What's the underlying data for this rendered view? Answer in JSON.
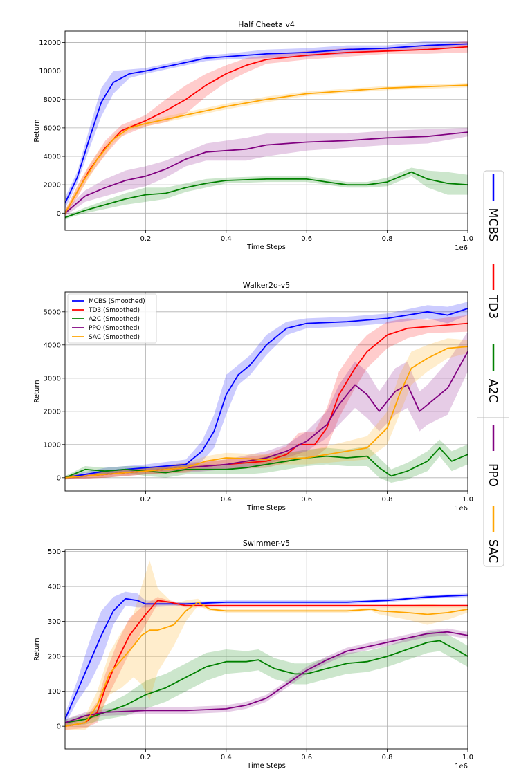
{
  "chart_data": [
    {
      "type": "line",
      "title": "Half Cheeta v4",
      "xlabel": "Time Steps",
      "ylabel": "Return",
      "x_offset_text": "1e6",
      "xlim": [
        0,
        1.0
      ],
      "ylim": [
        -1200,
        12800
      ],
      "xticks": [
        0.2,
        0.4,
        0.6,
        0.8,
        1.0
      ],
      "xtick_labels": [
        "0.2",
        "0.4",
        "0.6",
        "0.8",
        "1.0"
      ],
      "yticks": [
        0,
        2000,
        4000,
        6000,
        8000,
        10000,
        12000
      ],
      "ytick_labels": [
        "0",
        "2000",
        "4000",
        "6000",
        "8000",
        "10000",
        "12000"
      ],
      "grid": true,
      "series": [
        {
          "name": "MCBS",
          "color": "#0000ff",
          "x": [
            0,
            0.03,
            0.06,
            0.09,
            0.12,
            0.16,
            0.2,
            0.25,
            0.3,
            0.35,
            0.4,
            0.5,
            0.6,
            0.7,
            0.8,
            0.9,
            1.0
          ],
          "values": [
            700,
            2500,
            5200,
            7800,
            9200,
            9800,
            10000,
            10300,
            10600,
            10900,
            11000,
            11200,
            11300,
            11500,
            11600,
            11800,
            11900
          ],
          "band": [
            400,
            400,
            700,
            1000,
            800,
            300,
            200,
            200,
            200,
            200,
            200,
            300,
            300,
            300,
            200,
            300,
            200
          ]
        },
        {
          "name": "TD3",
          "color": "#ff0000",
          "x": [
            0,
            0.03,
            0.06,
            0.1,
            0.14,
            0.2,
            0.25,
            0.3,
            0.35,
            0.4,
            0.45,
            0.5,
            0.6,
            0.7,
            0.8,
            0.9,
            1.0
          ],
          "values": [
            0,
            1500,
            3000,
            4600,
            5800,
            6500,
            7200,
            8000,
            9000,
            9800,
            10400,
            10800,
            11100,
            11300,
            11400,
            11500,
            11700
          ],
          "band": [
            200,
            400,
            400,
            500,
            400,
            400,
            800,
            1000,
            800,
            600,
            500,
            300,
            300,
            300,
            200,
            300,
            400
          ]
        },
        {
          "name": "A2C",
          "color": "#008000",
          "x": [
            0,
            0.05,
            0.1,
            0.15,
            0.2,
            0.25,
            0.3,
            0.35,
            0.4,
            0.5,
            0.6,
            0.65,
            0.7,
            0.75,
            0.8,
            0.86,
            0.9,
            0.95,
            1.0
          ],
          "values": [
            -300,
            200,
            600,
            1000,
            1300,
            1400,
            1800,
            2100,
            2300,
            2400,
            2400,
            2200,
            2000,
            2000,
            2200,
            2900,
            2400,
            2100,
            2000
          ],
          "band": [
            100,
            200,
            300,
            400,
            500,
            400,
            300,
            300,
            200,
            200,
            200,
            200,
            200,
            200,
            300,
            300,
            600,
            800,
            700
          ]
        },
        {
          "name": "PPO",
          "color": "#800080",
          "x": [
            0,
            0.05,
            0.1,
            0.15,
            0.2,
            0.25,
            0.3,
            0.35,
            0.4,
            0.45,
            0.5,
            0.6,
            0.7,
            0.8,
            0.9,
            1.0
          ],
          "values": [
            0,
            1200,
            1800,
            2300,
            2600,
            3100,
            3800,
            4300,
            4400,
            4500,
            4800,
            5000,
            5100,
            5300,
            5400,
            5700
          ],
          "band": [
            200,
            400,
            600,
            700,
            700,
            600,
            500,
            600,
            700,
            800,
            800,
            600,
            500,
            500,
            500,
            300
          ]
        },
        {
          "name": "SAC",
          "color": "#ffa500",
          "x": [
            0,
            0.04,
            0.08,
            0.12,
            0.16,
            0.2,
            0.3,
            0.4,
            0.5,
            0.6,
            0.7,
            0.8,
            0.9,
            1.0
          ],
          "values": [
            0,
            2000,
            3800,
            5200,
            6000,
            6300,
            6900,
            7500,
            8000,
            8400,
            8600,
            8800,
            8900,
            9000
          ],
          "band": [
            200,
            400,
            400,
            300,
            200,
            200,
            200,
            200,
            200,
            150,
            150,
            150,
            150,
            150
          ]
        }
      ]
    },
    {
      "type": "line",
      "title": "Walker2d-v5",
      "xlabel": "Time Steps",
      "ylabel": "Return",
      "x_offset_text": "1e6",
      "xlim": [
        0,
        1.0
      ],
      "ylim": [
        -400,
        5600
      ],
      "xticks": [
        0.2,
        0.4,
        0.6,
        0.8,
        1.0
      ],
      "xtick_labels": [
        "0.2",
        "0.4",
        "0.6",
        "0.8",
        "1.0"
      ],
      "yticks": [
        0,
        1000,
        2000,
        3000,
        4000,
        5000
      ],
      "ytick_labels": [
        "0",
        "1000",
        "2000",
        "3000",
        "4000",
        "5000"
      ],
      "grid": true,
      "legend": {
        "placement": "top-left",
        "entries": [
          "MCBS (Smoothed)",
          "TD3 (Smoothed)",
          "A2C (Smoothed)",
          "PPO (Smoothed)",
          "SAC (Smoothed)"
        ]
      },
      "series": [
        {
          "name": "MCBS (Smoothed)",
          "color": "#0000ff",
          "x": [
            0,
            0.1,
            0.2,
            0.3,
            0.34,
            0.37,
            0.4,
            0.43,
            0.46,
            0.5,
            0.55,
            0.6,
            0.7,
            0.8,
            0.9,
            0.95,
            1.0
          ],
          "values": [
            0,
            200,
            300,
            400,
            800,
            1400,
            2500,
            3100,
            3400,
            4000,
            4500,
            4650,
            4700,
            4800,
            5000,
            4900,
            5100
          ],
          "band": [
            50,
            100,
            100,
            150,
            300,
            500,
            600,
            300,
            300,
            300,
            200,
            150,
            150,
            150,
            200,
            250,
            200
          ]
        },
        {
          "name": "TD3 (Smoothed)",
          "color": "#ff0000",
          "x": [
            0,
            0.1,
            0.2,
            0.3,
            0.4,
            0.5,
            0.55,
            0.58,
            0.62,
            0.65,
            0.68,
            0.72,
            0.75,
            0.8,
            0.85,
            0.9,
            1.0
          ],
          "values": [
            0,
            100,
            200,
            300,
            400,
            500,
            700,
            1000,
            1000,
            1500,
            2500,
            3300,
            3800,
            4300,
            4500,
            4550,
            4650
          ],
          "band": [
            50,
            100,
            100,
            100,
            150,
            200,
            250,
            350,
            400,
            600,
            700,
            600,
            500,
            400,
            300,
            200,
            250
          ]
        },
        {
          "name": "A2C (Smoothed)",
          "color": "#008000",
          "x": [
            0,
            0.05,
            0.1,
            0.15,
            0.2,
            0.25,
            0.3,
            0.35,
            0.4,
            0.45,
            0.5,
            0.55,
            0.6,
            0.65,
            0.7,
            0.75,
            0.78,
            0.81,
            0.85,
            0.9,
            0.93,
            0.96,
            1.0
          ],
          "values": [
            0,
            250,
            200,
            250,
            200,
            150,
            250,
            250,
            250,
            300,
            400,
            500,
            600,
            650,
            600,
            650,
            300,
            50,
            200,
            500,
            900,
            500,
            700
          ],
          "band": [
            50,
            100,
            100,
            100,
            150,
            150,
            150,
            150,
            150,
            200,
            250,
            250,
            250,
            250,
            250,
            300,
            300,
            200,
            250,
            300,
            250,
            300,
            300
          ]
        },
        {
          "name": "PPO (Smoothed)",
          "color": "#800080",
          "x": [
            0,
            0.1,
            0.2,
            0.3,
            0.4,
            0.5,
            0.55,
            0.6,
            0.65,
            0.68,
            0.72,
            0.75,
            0.78,
            0.82,
            0.85,
            0.88,
            0.9,
            0.95,
            1.0
          ],
          "values": [
            0,
            100,
            200,
            300,
            400,
            600,
            800,
            1100,
            1600,
            2200,
            2800,
            2500,
            2000,
            2600,
            2800,
            2000,
            2200,
            2700,
            3800
          ],
          "band": [
            50,
            100,
            100,
            150,
            150,
            200,
            200,
            300,
            400,
            600,
            700,
            700,
            600,
            700,
            700,
            600,
            600,
            800,
            600
          ]
        },
        {
          "name": "SAC (Smoothed)",
          "color": "#ffa500",
          "x": [
            0,
            0.1,
            0.2,
            0.3,
            0.35,
            0.4,
            0.5,
            0.6,
            0.7,
            0.75,
            0.8,
            0.83,
            0.86,
            0.9,
            0.95,
            1.0
          ],
          "values": [
            0,
            100,
            200,
            300,
            500,
            600,
            550,
            600,
            800,
            900,
            1500,
            2500,
            3300,
            3600,
            3900,
            3950
          ],
          "band": [
            50,
            100,
            100,
            150,
            150,
            150,
            150,
            200,
            300,
            350,
            500,
            600,
            500,
            400,
            300,
            200
          ]
        }
      ]
    },
    {
      "type": "line",
      "title": "Swimmer-v5",
      "xlabel": "Time Steps",
      "ylabel": "Return",
      "x_offset_text": "1e6",
      "xlim": [
        0,
        1.0
      ],
      "ylim": [
        -65,
        505
      ],
      "xticks": [
        0.2,
        0.4,
        0.6,
        0.8,
        1.0
      ],
      "xtick_labels": [
        "0.2",
        "0.4",
        "0.6",
        "0.8",
        "1.0"
      ],
      "yticks": [
        0,
        100,
        200,
        300,
        400,
        500
      ],
      "ytick_labels": [
        "0",
        "100",
        "200",
        "300",
        "400",
        "500"
      ],
      "grid": true,
      "series": [
        {
          "name": "MCBS",
          "color": "#0000ff",
          "x": [
            0,
            0.03,
            0.06,
            0.09,
            0.12,
            0.15,
            0.18,
            0.2,
            0.3,
            0.4,
            0.5,
            0.6,
            0.7,
            0.8,
            0.9,
            1.0
          ],
          "values": [
            20,
            100,
            180,
            260,
            330,
            365,
            360,
            350,
            350,
            355,
            355,
            355,
            355,
            360,
            370,
            375
          ],
          "band": [
            15,
            30,
            60,
            70,
            40,
            20,
            20,
            10,
            5,
            5,
            5,
            5,
            5,
            5,
            5,
            5
          ]
        },
        {
          "name": "TD3",
          "color": "#ff0000",
          "x": [
            0,
            0.05,
            0.08,
            0.1,
            0.13,
            0.16,
            0.2,
            0.23,
            0.26,
            0.3,
            0.4,
            0.5,
            0.6,
            0.7,
            0.8,
            0.9,
            1.0
          ],
          "values": [
            0,
            10,
            40,
            110,
            190,
            260,
            320,
            360,
            355,
            345,
            345,
            345,
            345,
            345,
            345,
            345,
            345
          ],
          "band": [
            10,
            15,
            30,
            40,
            50,
            50,
            30,
            10,
            5,
            5,
            5,
            5,
            5,
            5,
            5,
            5,
            5
          ]
        },
        {
          "name": "A2C",
          "color": "#008000",
          "x": [
            0,
            0.05,
            0.1,
            0.15,
            0.2,
            0.25,
            0.3,
            0.35,
            0.4,
            0.45,
            0.48,
            0.52,
            0.57,
            0.6,
            0.65,
            0.7,
            0.75,
            0.8,
            0.85,
            0.9,
            0.93,
            0.97,
            1.0
          ],
          "values": [
            10,
            20,
            40,
            60,
            90,
            110,
            140,
            170,
            185,
            185,
            190,
            165,
            150,
            150,
            165,
            180,
            185,
            200,
            220,
            240,
            245,
            220,
            200
          ],
          "band": [
            10,
            15,
            20,
            30,
            40,
            40,
            40,
            40,
            35,
            30,
            30,
            30,
            30,
            30,
            30,
            30,
            30,
            30,
            30,
            30,
            30,
            30,
            30
          ]
        },
        {
          "name": "PPO",
          "color": "#800080",
          "x": [
            0,
            0.05,
            0.1,
            0.2,
            0.3,
            0.4,
            0.45,
            0.5,
            0.55,
            0.6,
            0.65,
            0.7,
            0.8,
            0.9,
            0.95,
            1.0
          ],
          "values": [
            10,
            30,
            40,
            45,
            45,
            50,
            60,
            80,
            120,
            160,
            190,
            215,
            240,
            265,
            270,
            260
          ],
          "band": [
            10,
            10,
            10,
            10,
            10,
            10,
            10,
            10,
            10,
            10,
            10,
            10,
            10,
            10,
            10,
            10
          ]
        },
        {
          "name": "SAC",
          "color": "#ffa500",
          "x": [
            0,
            0.05,
            0.08,
            0.11,
            0.14,
            0.17,
            0.19,
            0.21,
            0.23,
            0.27,
            0.3,
            0.33,
            0.36,
            0.4,
            0.5,
            0.6,
            0.7,
            0.76,
            0.78,
            0.85,
            0.9,
            0.95,
            1.0
          ],
          "values": [
            0,
            10,
            60,
            150,
            190,
            230,
            260,
            275,
            275,
            290,
            330,
            355,
            335,
            330,
            330,
            330,
            330,
            335,
            330,
            325,
            320,
            325,
            335
          ],
          "band": [
            10,
            20,
            40,
            60,
            80,
            90,
            140,
            200,
            120,
            60,
            30,
            10,
            5,
            5,
            5,
            5,
            5,
            5,
            10,
            20,
            30,
            20,
            10
          ]
        }
      ]
    }
  ],
  "side_legend": {
    "entries": [
      {
        "label": "MCBS",
        "color": "#0000ff"
      },
      {
        "label": "TD3",
        "color": "#ff0000"
      },
      {
        "label": "A2C",
        "color": "#008000"
      },
      {
        "label": "PPO",
        "color": "#800080"
      },
      {
        "label": "SAC",
        "color": "#ffa500"
      }
    ]
  }
}
